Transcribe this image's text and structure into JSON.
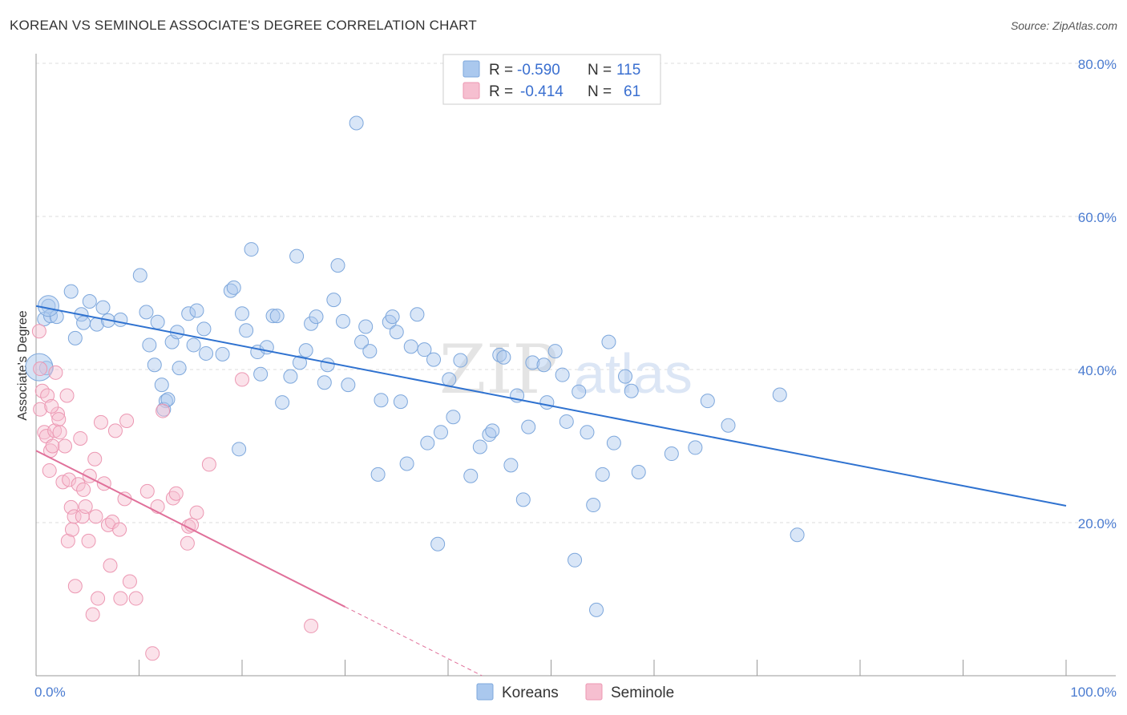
{
  "header": {
    "title": "KOREAN VS SEMINOLE ASSOCIATE'S DEGREE CORRELATION CHART",
    "source": "Source: ZipAtlas.com"
  },
  "watermark": {
    "zip": "ZIP",
    "atlas": "atlas"
  },
  "colors": {
    "korean_fill": "#aac8ee",
    "korean_stroke": "#7da7dc",
    "korean_line": "#2f72d0",
    "seminole_fill": "#f6bfd0",
    "seminole_stroke": "#ec97b2",
    "seminole_line": "#e0709a"
  },
  "legend": {
    "korean": {
      "r_label": "R =",
      "r_value": "-0.590",
      "n_label": "N =",
      "n_value": "115"
    },
    "seminole": {
      "r_label": "R =",
      "r_value": "-0.414",
      "n_label": "N =",
      "n_value": "61"
    }
  },
  "bottom_legend": [
    "Koreans",
    "Seminole"
  ],
  "chart_data": {
    "type": "scatter",
    "title": "KOREAN VS SEMINOLE ASSOCIATE'S DEGREE CORRELATION CHART",
    "xlabel": "",
    "ylabel": "Associate's Degree",
    "xlim": [
      0,
      100
    ],
    "ylim": [
      0,
      80
    ],
    "x_tick_labels": [
      "0.0%",
      "100.0%"
    ],
    "y_tick_labels": [
      "20.0%",
      "40.0%",
      "60.0%",
      "80.0%"
    ],
    "y_ticks": [
      20,
      40,
      60,
      80
    ],
    "series": [
      {
        "name": "Koreans",
        "r": -0.59,
        "n": 115,
        "trend": {
          "x1": 0,
          "y1": 48.3,
          "x2": 100,
          "y2": 22.2
        },
        "points": [
          [
            1.2,
            48.3
          ],
          [
            0.8,
            46.6
          ],
          [
            1.4,
            47.0
          ],
          [
            2.0,
            46.9
          ],
          [
            3.4,
            50.2
          ],
          [
            4.4,
            47.2
          ],
          [
            4.6,
            46.1
          ],
          [
            3.8,
            44.1
          ],
          [
            5.2,
            48.9
          ],
          [
            6.5,
            48.1
          ],
          [
            5.9,
            45.9
          ],
          [
            7.0,
            46.4
          ],
          [
            8.2,
            46.5
          ],
          [
            10.1,
            52.3
          ],
          [
            11.0,
            43.2
          ],
          [
            11.5,
            40.6
          ],
          [
            12.2,
            38.0
          ],
          [
            11.8,
            46.2
          ],
          [
            12.6,
            35.9
          ],
          [
            12.4,
            34.8
          ],
          [
            12.8,
            36.1
          ],
          [
            13.2,
            43.6
          ],
          [
            13.7,
            44.9
          ],
          [
            13.9,
            40.2
          ],
          [
            14.8,
            47.3
          ],
          [
            15.3,
            43.2
          ],
          [
            15.6,
            47.7
          ],
          [
            16.3,
            45.3
          ],
          [
            16.5,
            42.1
          ],
          [
            18.1,
            42.0
          ],
          [
            18.9,
            50.3
          ],
          [
            19.2,
            50.7
          ],
          [
            19.7,
            29.6
          ],
          [
            20.0,
            47.3
          ],
          [
            20.4,
            45.1
          ],
          [
            20.9,
            55.7
          ],
          [
            21.5,
            42.3
          ],
          [
            21.8,
            39.4
          ],
          [
            22.4,
            42.9
          ],
          [
            23.0,
            47.0
          ],
          [
            23.4,
            47.0
          ],
          [
            23.9,
            35.7
          ],
          [
            24.7,
            39.1
          ],
          [
            25.3,
            54.8
          ],
          [
            25.6,
            40.9
          ],
          [
            26.2,
            42.5
          ],
          [
            26.7,
            46.0
          ],
          [
            27.2,
            46.9
          ],
          [
            28.0,
            38.3
          ],
          [
            28.3,
            40.6
          ],
          [
            28.9,
            49.1
          ],
          [
            29.3,
            53.6
          ],
          [
            29.8,
            46.3
          ],
          [
            30.3,
            38.0
          ],
          [
            31.1,
            72.2
          ],
          [
            31.6,
            43.6
          ],
          [
            32.0,
            45.6
          ],
          [
            32.4,
            42.4
          ],
          [
            33.2,
            26.3
          ],
          [
            33.5,
            36.0
          ],
          [
            34.3,
            46.2
          ],
          [
            34.6,
            46.9
          ],
          [
            35.0,
            44.9
          ],
          [
            35.4,
            35.8
          ],
          [
            36.0,
            27.7
          ],
          [
            36.4,
            43.0
          ],
          [
            37.0,
            47.2
          ],
          [
            37.7,
            42.6
          ],
          [
            38.0,
            30.4
          ],
          [
            38.6,
            41.3
          ],
          [
            39.0,
            17.2
          ],
          [
            39.3,
            31.8
          ],
          [
            40.1,
            38.7
          ],
          [
            40.5,
            33.8
          ],
          [
            41.2,
            41.2
          ],
          [
            42.2,
            26.1
          ],
          [
            43.1,
            29.9
          ],
          [
            44.0,
            31.5
          ],
          [
            44.3,
            32.0
          ],
          [
            45.0,
            41.9
          ],
          [
            45.4,
            41.6
          ],
          [
            46.1,
            27.5
          ],
          [
            46.7,
            36.6
          ],
          [
            47.3,
            23.0
          ],
          [
            47.8,
            32.5
          ],
          [
            48.2,
            40.9
          ],
          [
            49.3,
            40.6
          ],
          [
            49.6,
            35.7
          ],
          [
            50.4,
            42.4
          ],
          [
            51.1,
            39.3
          ],
          [
            51.5,
            33.2
          ],
          [
            52.3,
            15.1
          ],
          [
            52.7,
            37.1
          ],
          [
            53.5,
            31.8
          ],
          [
            54.1,
            22.3
          ],
          [
            54.4,
            8.6
          ],
          [
            55.0,
            26.3
          ],
          [
            55.6,
            43.6
          ],
          [
            56.1,
            30.4
          ],
          [
            57.2,
            39.1
          ],
          [
            57.8,
            37.2
          ],
          [
            58.5,
            26.6
          ],
          [
            61.7,
            29.0
          ],
          [
            64.0,
            29.8
          ],
          [
            65.2,
            35.9
          ],
          [
            67.2,
            32.7
          ],
          [
            72.2,
            36.7
          ],
          [
            73.9,
            18.4
          ],
          [
            1.0,
            40.2
          ],
          [
            10.7,
            47.5
          ]
        ]
      },
      {
        "name": "Seminole",
        "r": -0.414,
        "n": 61,
        "trend": {
          "x1": 0,
          "y1": 29.4,
          "x2": 30,
          "y2": 9.0
        },
        "trend_dashed": {
          "x1": 30,
          "x2": 43.3,
          "y2": 0
        },
        "points": [
          [
            0.3,
            45.0
          ],
          [
            0.4,
            34.8
          ],
          [
            0.6,
            37.2
          ],
          [
            0.8,
            31.8
          ],
          [
            1.0,
            31.3
          ],
          [
            1.1,
            36.6
          ],
          [
            1.3,
            26.8
          ],
          [
            1.4,
            29.4
          ],
          [
            1.6,
            30.0
          ],
          [
            1.8,
            32.0
          ],
          [
            1.9,
            39.6
          ],
          [
            2.1,
            34.2
          ],
          [
            2.2,
            33.5
          ],
          [
            2.3,
            31.8
          ],
          [
            2.6,
            25.3
          ],
          [
            2.8,
            30.0
          ],
          [
            3.0,
            36.6
          ],
          [
            3.1,
            17.6
          ],
          [
            3.2,
            25.6
          ],
          [
            3.4,
            22.0
          ],
          [
            3.5,
            19.1
          ],
          [
            3.7,
            20.8
          ],
          [
            3.8,
            11.7
          ],
          [
            4.1,
            25.0
          ],
          [
            4.3,
            31.0
          ],
          [
            4.5,
            20.8
          ],
          [
            4.6,
            24.3
          ],
          [
            4.8,
            22.1
          ],
          [
            5.1,
            17.6
          ],
          [
            5.2,
            26.1
          ],
          [
            5.5,
            8.0
          ],
          [
            5.7,
            28.3
          ],
          [
            5.8,
            20.8
          ],
          [
            6.0,
            10.1
          ],
          [
            6.3,
            33.1
          ],
          [
            6.6,
            25.1
          ],
          [
            7.0,
            19.7
          ],
          [
            7.2,
            14.4
          ],
          [
            7.4,
            20.1
          ],
          [
            7.7,
            32.0
          ],
          [
            8.1,
            19.1
          ],
          [
            8.2,
            10.1
          ],
          [
            8.6,
            23.1
          ],
          [
            8.8,
            33.3
          ],
          [
            9.1,
            12.3
          ],
          [
            9.7,
            10.1
          ],
          [
            10.8,
            24.1
          ],
          [
            11.3,
            2.9
          ],
          [
            11.8,
            22.1
          ],
          [
            12.3,
            34.6
          ],
          [
            13.3,
            23.2
          ],
          [
            13.6,
            23.8
          ],
          [
            14.7,
            17.3
          ],
          [
            14.8,
            19.5
          ],
          [
            15.1,
            19.7
          ],
          [
            15.6,
            21.3
          ],
          [
            16.8,
            27.6
          ],
          [
            20.0,
            38.7
          ],
          [
            26.7,
            6.5
          ],
          [
            0.4,
            40.1
          ],
          [
            1.5,
            35.2
          ]
        ]
      }
    ]
  }
}
